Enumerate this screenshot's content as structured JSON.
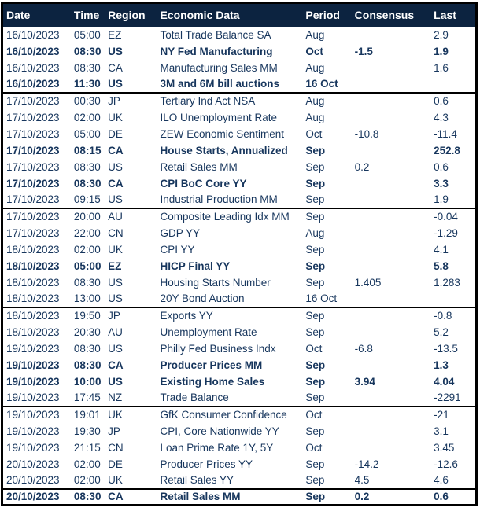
{
  "colors": {
    "frame_border": "#000000",
    "header_bg": "#0C2340",
    "header_text": "#FFFFFF",
    "row_text": "#17365D",
    "row_bg": "#FFFFFF",
    "group_separator": "#000000"
  },
  "chart_data": {
    "type": "table",
    "columns": [
      "Date",
      "Time",
      "Region",
      "Economic Data",
      "Period",
      "Consensus",
      "Last"
    ],
    "rows": [
      {
        "date": "16/10/2023",
        "time": "05:00",
        "region": "EZ",
        "event": "Total Trade Balance SA",
        "period": "Aug",
        "consensus": "",
        "last": "2.9",
        "emphasis": false,
        "group_end": false
      },
      {
        "date": "16/10/2023",
        "time": "08:30",
        "region": "US",
        "event": "NY Fed Manufacturing",
        "period": "Oct",
        "consensus": "-1.5",
        "last": "1.9",
        "emphasis": true,
        "group_end": false
      },
      {
        "date": "16/10/2023",
        "time": "08:30",
        "region": "CA",
        "event": "Manufacturing Sales MM",
        "period": "Aug",
        "consensus": "",
        "last": "1.6",
        "emphasis": false,
        "group_end": false
      },
      {
        "date": "16/10/2023",
        "time": "11:30",
        "region": "US",
        "event": "3M and 6M bill auctions",
        "period": "16 Oct",
        "consensus": "",
        "last": "",
        "emphasis": true,
        "group_end": true
      },
      {
        "date": "17/10/2023",
        "time": "00:30",
        "region": "JP",
        "event": "Tertiary Ind Act NSA",
        "period": "Aug",
        "consensus": "",
        "last": "0.6",
        "emphasis": false,
        "group_end": false
      },
      {
        "date": "17/10/2023",
        "time": "02:00",
        "region": "UK",
        "event": "ILO Unemployment Rate",
        "period": "Aug",
        "consensus": "",
        "last": "4.3",
        "emphasis": false,
        "group_end": false
      },
      {
        "date": "17/10/2023",
        "time": "05:00",
        "region": "DE",
        "event": "ZEW Economic Sentiment",
        "period": "Oct",
        "consensus": "-10.8",
        "last": "-11.4",
        "emphasis": false,
        "group_end": false
      },
      {
        "date": "17/10/2023",
        "time": "08:15",
        "region": "CA",
        "event": "House Starts, Annualized",
        "period": "Sep",
        "consensus": "",
        "last": "252.8",
        "emphasis": true,
        "group_end": false
      },
      {
        "date": "17/10/2023",
        "time": "08:30",
        "region": "US",
        "event": "Retail Sales MM",
        "period": "Sep",
        "consensus": "0.2",
        "last": "0.6",
        "emphasis": false,
        "group_end": false
      },
      {
        "date": "17/10/2023",
        "time": "08:30",
        "region": "CA",
        "event": "CPI BoC Core YY",
        "period": "Sep",
        "consensus": "",
        "last": "3.3",
        "emphasis": true,
        "group_end": false
      },
      {
        "date": "17/10/2023",
        "time": "09:15",
        "region": "US",
        "event": "Industrial Production MM",
        "period": "Sep",
        "consensus": "",
        "last": "1.9",
        "emphasis": false,
        "group_end": true
      },
      {
        "date": "17/10/2023",
        "time": "20:00",
        "region": "AU",
        "event": "Composite Leading Idx MM",
        "period": "Sep",
        "consensus": "",
        "last": "-0.04",
        "emphasis": false,
        "group_end": false
      },
      {
        "date": "17/10/2023",
        "time": "22:00",
        "region": "CN",
        "event": "GDP YY",
        "period": "Aug",
        "consensus": "",
        "last": "-1.29",
        "emphasis": false,
        "group_end": false
      },
      {
        "date": "18/10/2023",
        "time": "02:00",
        "region": "UK",
        "event": "CPI YY",
        "period": "Sep",
        "consensus": "",
        "last": "4.1",
        "emphasis": false,
        "group_end": false
      },
      {
        "date": "18/10/2023",
        "time": "05:00",
        "region": "EZ",
        "event": "HICP Final YY",
        "period": "Sep",
        "consensus": "",
        "last": "5.8",
        "emphasis": true,
        "group_end": false
      },
      {
        "date": "18/10/2023",
        "time": "08:30",
        "region": "US",
        "event": "Housing Starts Number",
        "period": "Sep",
        "consensus": "1.405",
        "last": "1.283",
        "emphasis": false,
        "group_end": false
      },
      {
        "date": "18/10/2023",
        "time": "13:00",
        "region": "US",
        "event": "20Y Bond Auction",
        "period": "16 Oct",
        "consensus": "",
        "last": "",
        "emphasis": false,
        "group_end": true
      },
      {
        "date": "18/10/2023",
        "time": "19:50",
        "region": "JP",
        "event": "Exports YY",
        "period": "Sep",
        "consensus": "",
        "last": "-0.8",
        "emphasis": false,
        "group_end": false
      },
      {
        "date": "18/10/2023",
        "time": "20:30",
        "region": "AU",
        "event": "Unemployment Rate",
        "period": "Sep",
        "consensus": "",
        "last": "5.2",
        "emphasis": false,
        "group_end": false
      },
      {
        "date": "19/10/2023",
        "time": "08:30",
        "region": "US",
        "event": "Philly Fed Business Indx",
        "period": "Oct",
        "consensus": "-6.8",
        "last": "-13.5",
        "emphasis": false,
        "group_end": false
      },
      {
        "date": "19/10/2023",
        "time": "08:30",
        "region": "CA",
        "event": "Producer Prices MM",
        "period": "Sep",
        "consensus": "",
        "last": "1.3",
        "emphasis": true,
        "group_end": false
      },
      {
        "date": "19/10/2023",
        "time": "10:00",
        "region": "US",
        "event": "Existing Home Sales",
        "period": "Sep",
        "consensus": "3.94",
        "last": "4.04",
        "emphasis": true,
        "group_end": false
      },
      {
        "date": "19/10/2023",
        "time": "17:45",
        "region": "NZ",
        "event": "Trade Balance",
        "period": "Sep",
        "consensus": "",
        "last": "-2291",
        "emphasis": false,
        "group_end": true
      },
      {
        "date": "19/10/2023",
        "time": "19:01",
        "region": "UK",
        "event": "GfK Consumer Confidence",
        "period": "Oct",
        "consensus": "",
        "last": "-21",
        "emphasis": false,
        "group_end": false
      },
      {
        "date": "19/10/2023",
        "time": "19:30",
        "region": "JP",
        "event": "CPI, Core Nationwide YY",
        "period": "Sep",
        "consensus": "",
        "last": "3.1",
        "emphasis": false,
        "group_end": false
      },
      {
        "date": "19/10/2023",
        "time": "21:15",
        "region": "CN",
        "event": "Loan Prime Rate 1Y, 5Y",
        "period": "Oct",
        "consensus": "",
        "last": "3.45",
        "emphasis": false,
        "group_end": false
      },
      {
        "date": "20/10/2023",
        "time": "02:00",
        "region": "DE",
        "event": "Producer Prices YY",
        "period": "Sep",
        "consensus": "-14.2",
        "last": "-12.6",
        "emphasis": false,
        "group_end": false
      },
      {
        "date": "20/10/2023",
        "time": "02:00",
        "region": "UK",
        "event": "Retail Sales YY",
        "period": "Sep",
        "consensus": "4.5",
        "last": "4.6",
        "emphasis": false,
        "group_end": true
      },
      {
        "date": "20/10/2023",
        "time": "08:30",
        "region": "CA",
        "event": "Retail Sales MM",
        "period": "Sep",
        "consensus": "0.2",
        "last": "0.6",
        "emphasis": true,
        "group_end": false
      }
    ]
  }
}
